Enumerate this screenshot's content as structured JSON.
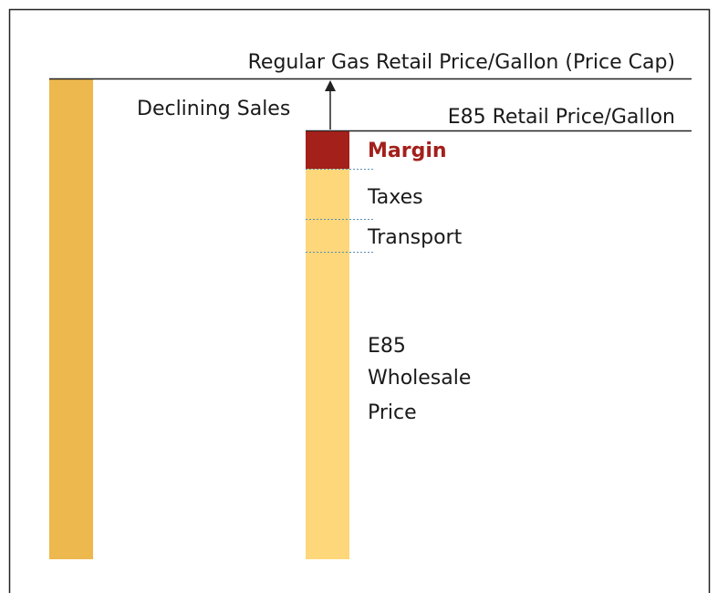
{
  "labels": {
    "price_cap": "Regular Gas Retail Price/Gallon (Price Cap)",
    "declining_sales": "Declining Sales",
    "e85_retail": "E85 Retail Price/Gallon",
    "margin": "Margin",
    "taxes": "Taxes",
    "transport": "Transport",
    "wholesale": [
      "E85",
      "Wholesale",
      "Price"
    ]
  }
}
